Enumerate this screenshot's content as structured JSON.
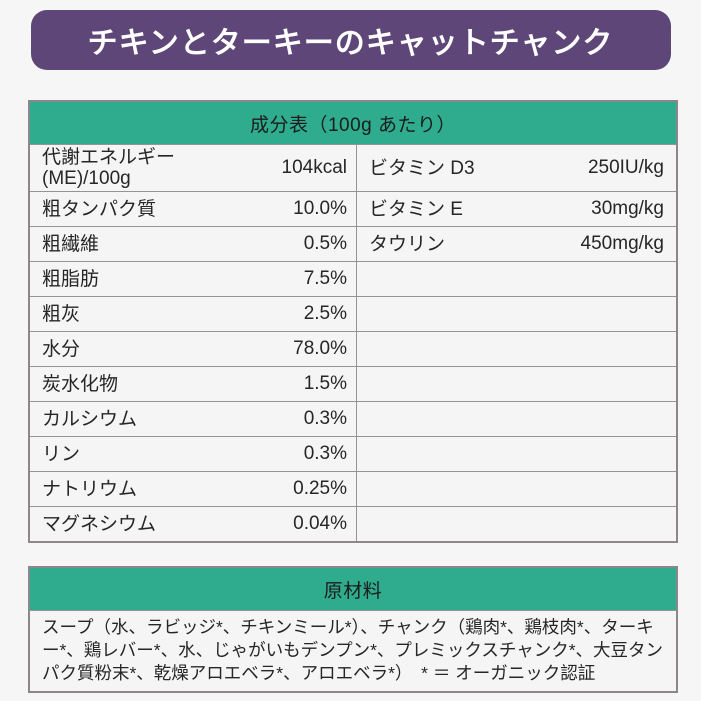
{
  "colors": {
    "banner_purple": "#5e4778",
    "header_teal": "#2fab8e",
    "page_background": "#f7f6f7",
    "border_gray": "#8b878b",
    "text_dark": "#262626",
    "title_text_white": "#ffffff"
  },
  "title": {
    "text": "チキンとターキーのキャットチャンク"
  },
  "nutrition": {
    "header": "成分表（100g あたり）",
    "rows": [
      {
        "left": {
          "label": "代謝エネルギー\n(ME)/100g",
          "value": "104kcal"
        },
        "right": {
          "label": "ビタミン D3",
          "value": "250IU/kg"
        }
      },
      {
        "left": {
          "label": "粗タンパク質",
          "value": "10.0%"
        },
        "right": {
          "label": "ビタミン E",
          "value": "30mg/kg"
        }
      },
      {
        "left": {
          "label": "粗繊維",
          "value": "0.5%"
        },
        "right": {
          "label": "タウリン",
          "value": "450mg/kg"
        }
      },
      {
        "left": {
          "label": "粗脂肪",
          "value": "7.5%"
        },
        "right": {
          "label": "",
          "value": ""
        }
      },
      {
        "left": {
          "label": "粗灰",
          "value": "2.5%"
        },
        "right": {
          "label": "",
          "value": ""
        }
      },
      {
        "left": {
          "label": "水分",
          "value": "78.0%"
        },
        "right": {
          "label": "",
          "value": ""
        }
      },
      {
        "left": {
          "label": "炭水化物",
          "value": "1.5%"
        },
        "right": {
          "label": "",
          "value": ""
        }
      },
      {
        "left": {
          "label": "カルシウム",
          "value": "0.3%"
        },
        "right": {
          "label": "",
          "value": ""
        }
      },
      {
        "left": {
          "label": "リン",
          "value": "0.3%"
        },
        "right": {
          "label": "",
          "value": ""
        }
      },
      {
        "left": {
          "label": "ナトリウム",
          "value": "0.25%"
        },
        "right": {
          "label": "",
          "value": ""
        }
      },
      {
        "left": {
          "label": "マグネシウム",
          "value": "0.04%"
        },
        "right": {
          "label": "",
          "value": ""
        }
      }
    ]
  },
  "ingredients": {
    "header": "原材料",
    "body": "スープ（水、ラビッジ*、チキンミール*）、チャンク（鶏肉*、鶏枝肉*、ターキー*、鶏レバー*、水、じゃがいもデンプン*、プレミックスチャンク*、大豆タンパク質粉末*、乾燥アロエベラ*、アロエベラ*）　* ＝ オーガニック認証"
  }
}
